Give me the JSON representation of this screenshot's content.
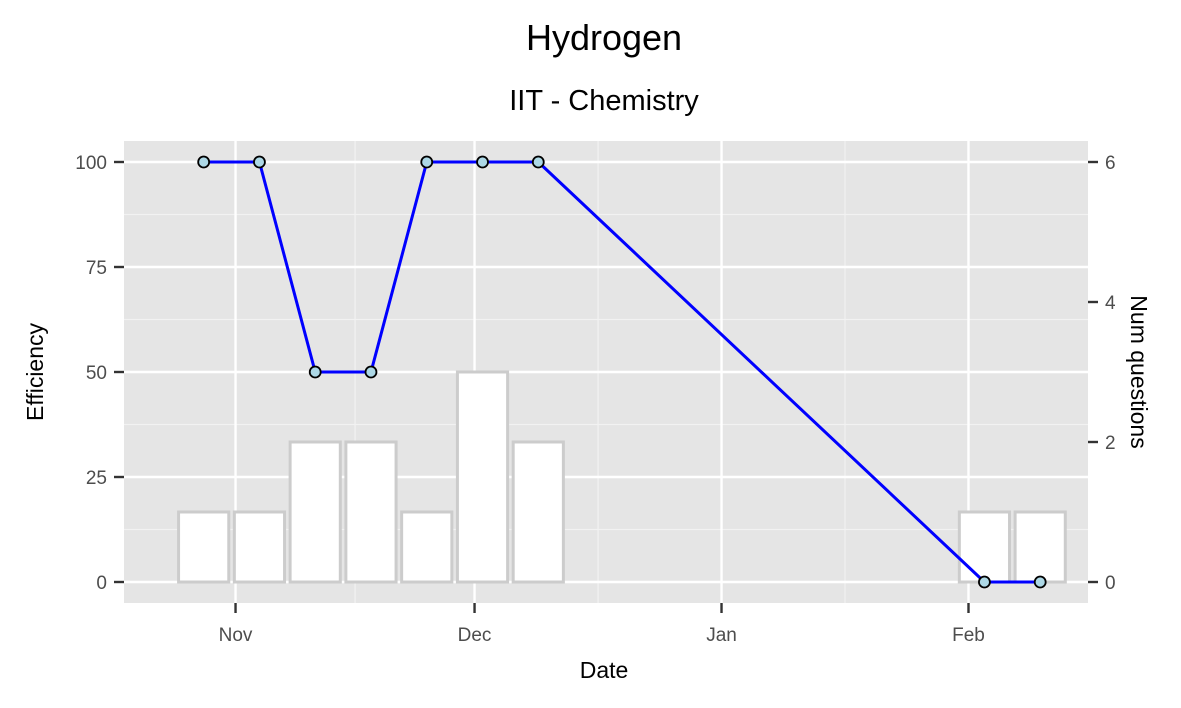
{
  "chart_data": {
    "type": "bar+line",
    "title": "Hydrogen",
    "subtitle": "IIT - Chemistry",
    "xlabel": "Date",
    "ylabel_left": "Efficiency",
    "ylabel_right": "Num questions",
    "x_ticks": [
      "Nov",
      "Dec",
      "Jan",
      "Feb"
    ],
    "x_tick_dates": [
      "2018-11-01",
      "2018-12-01",
      "2019-01-01",
      "2019-02-01"
    ],
    "xlim": [
      "2018-10-18",
      "2019-02-16"
    ],
    "ylim_left": [
      -5,
      105
    ],
    "ylim_right": [
      -0.3,
      6.3
    ],
    "y_left_ticks": [
      0,
      25,
      50,
      75,
      100
    ],
    "y_right_ticks": [
      0,
      2,
      4,
      6
    ],
    "grid": true,
    "series": [
      {
        "kind": "bar",
        "axis": "right",
        "fill": "#ffffff",
        "stroke": "#cccccc",
        "x": [
          "2018-10-28",
          "2018-11-04",
          "2018-11-11",
          "2018-11-18",
          "2018-11-25",
          "2018-12-02",
          "2018-12-09",
          "2019-02-03",
          "2019-02-10"
        ],
        "values": [
          1,
          1,
          2,
          2,
          1,
          3,
          2,
          1,
          1
        ]
      },
      {
        "kind": "line",
        "axis": "left",
        "color": "#0000ff",
        "point_fill": "#add8e6",
        "x": [
          "2018-10-28",
          "2018-11-04",
          "2018-11-11",
          "2018-11-18",
          "2018-11-25",
          "2018-12-02",
          "2018-12-09",
          "2019-02-03",
          "2019-02-10"
        ],
        "values": [
          100,
          100,
          50,
          50,
          100,
          100,
          100,
          0,
          0
        ]
      }
    ]
  }
}
